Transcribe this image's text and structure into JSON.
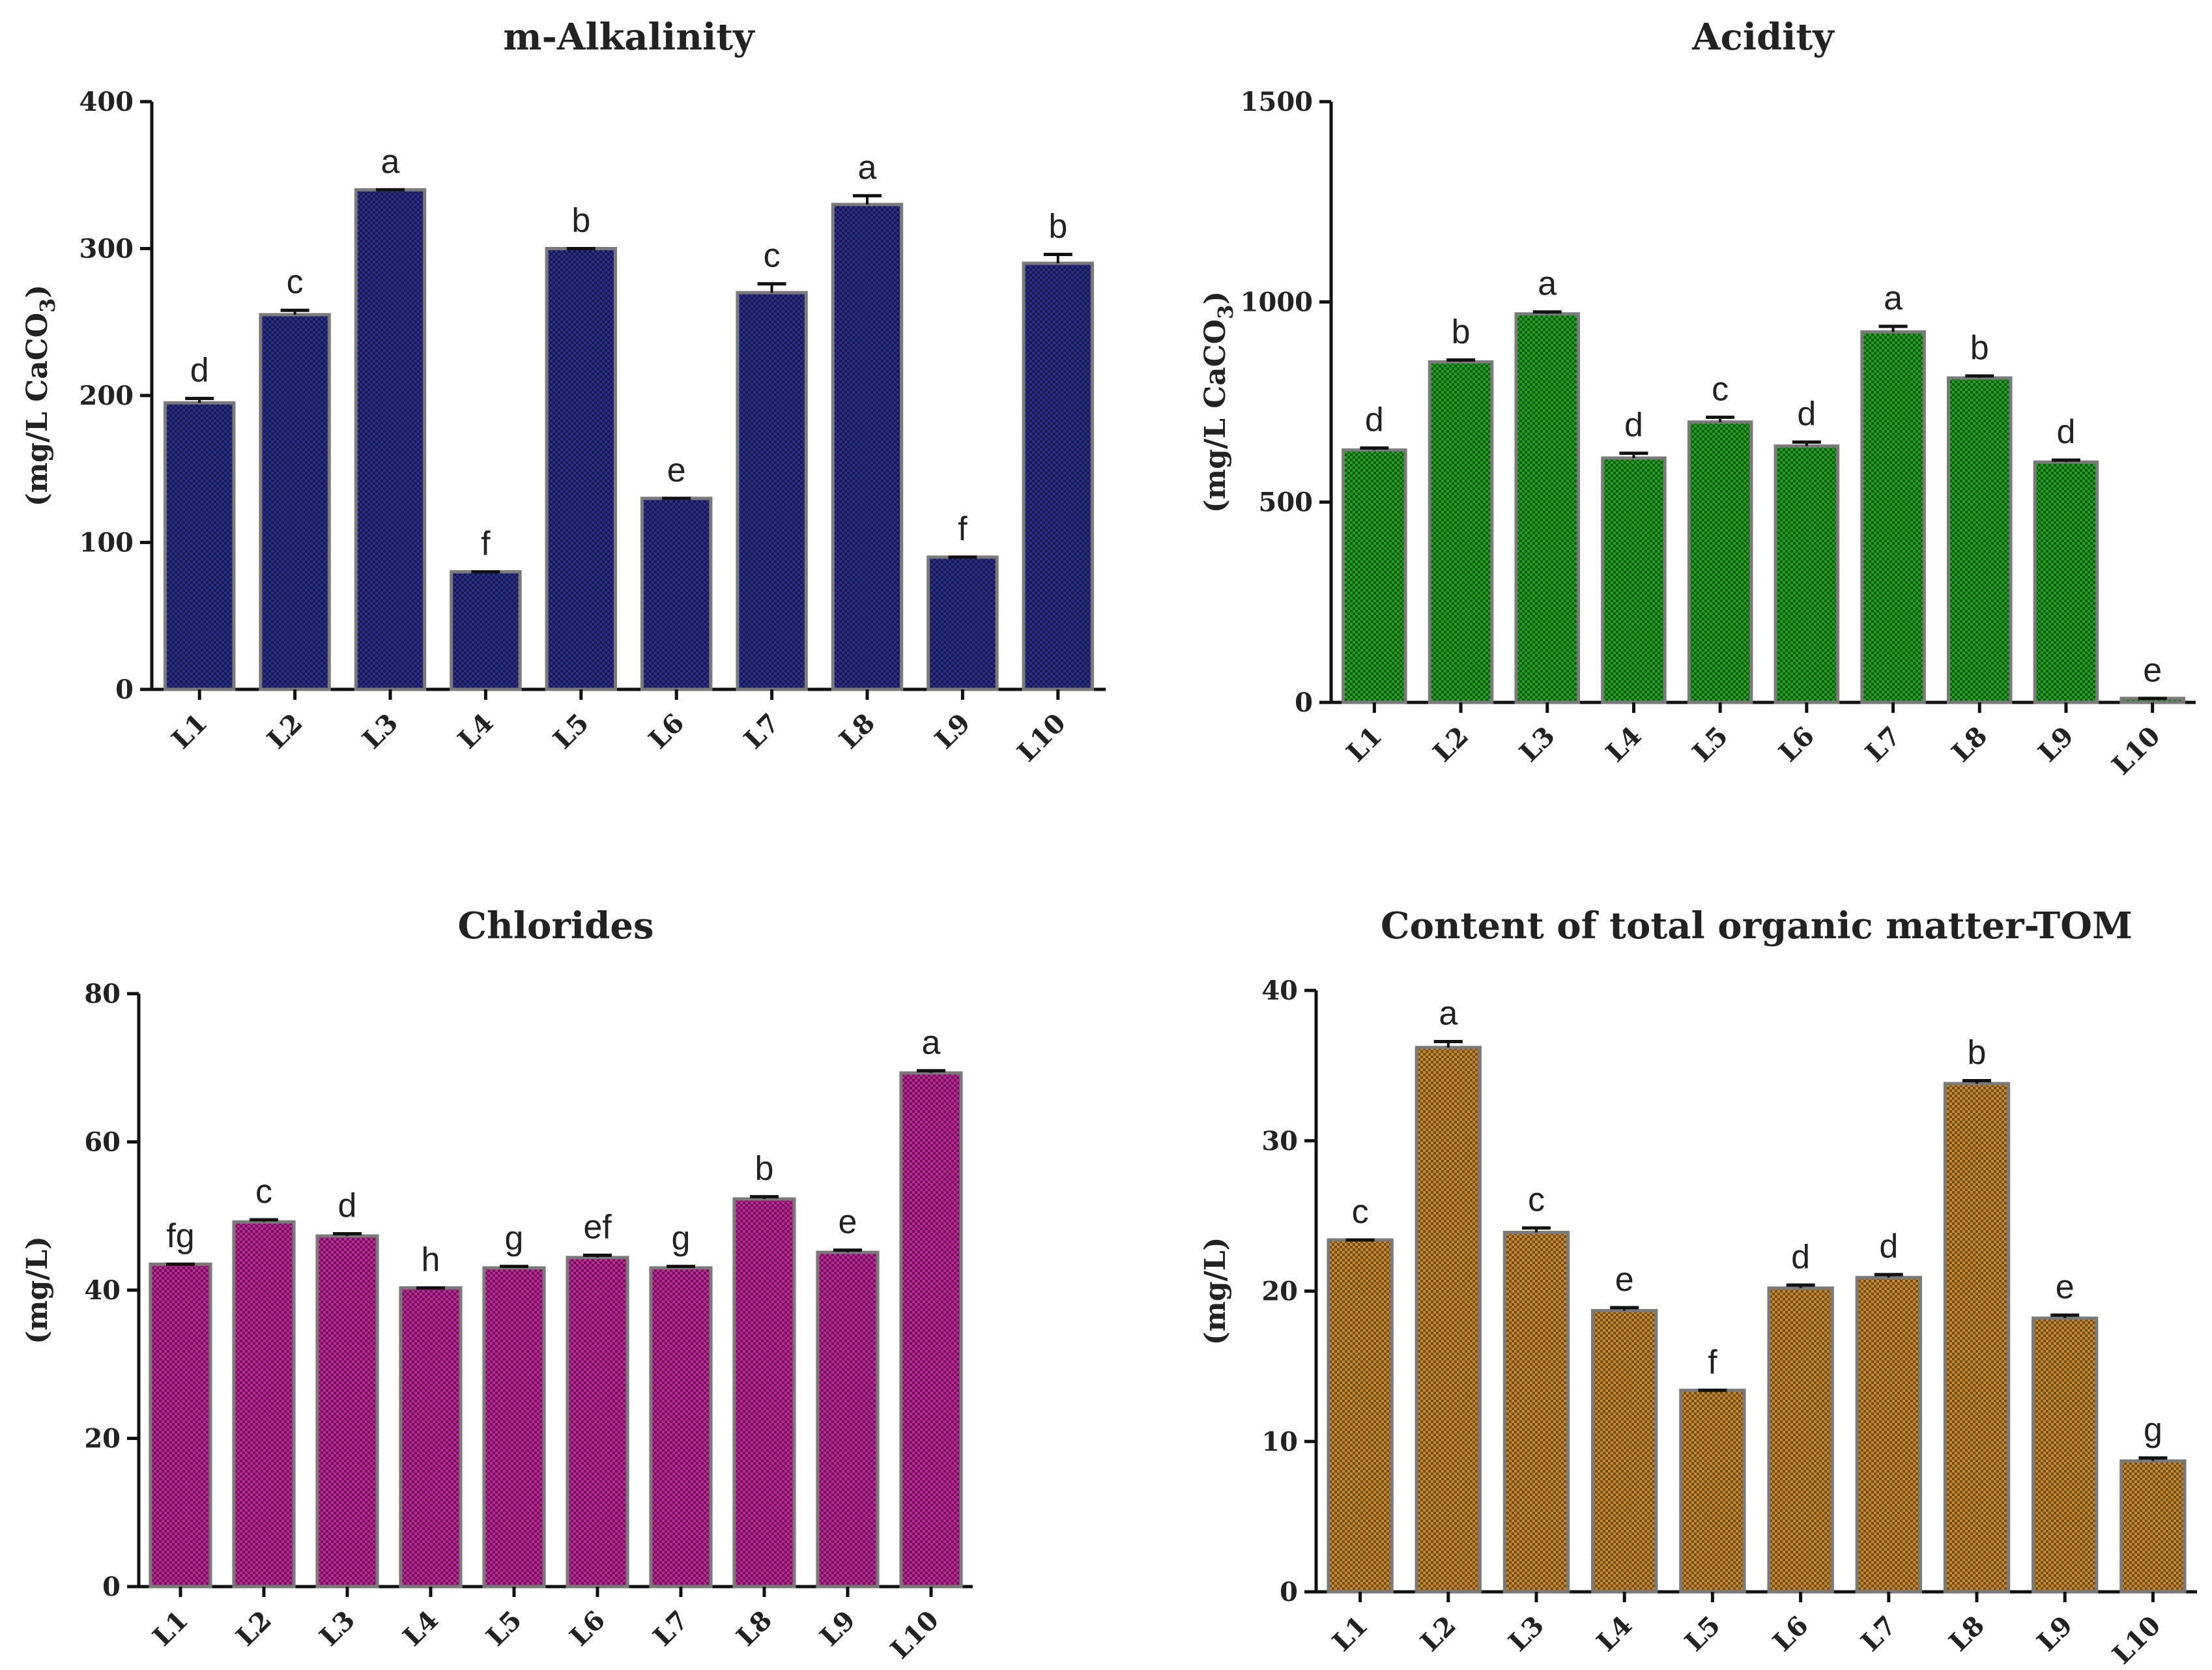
{
  "chart_data": [
    {
      "type": "bar",
      "title": "m-Alkalinity",
      "ylabel": "(mg/L CaCO3)",
      "ylabel_main": "(mg/L CaCO",
      "ylabel_sub": "3",
      "ylabel_tail": ")",
      "xlabel": "",
      "ylim": [
        0,
        400
      ],
      "yticks": [
        "0",
        "100",
        "200",
        "300",
        "400"
      ],
      "categories": [
        "L1",
        "L2",
        "L3",
        "L4",
        "L5",
        "L6",
        "L7",
        "L8",
        "L9",
        "L10"
      ],
      "values": [
        195,
        255,
        340,
        80,
        300,
        130,
        270,
        330,
        90,
        290
      ],
      "errors": [
        3,
        3,
        0,
        0,
        0,
        0,
        6,
        6,
        0,
        6
      ],
      "labels": [
        "d",
        "c",
        "a",
        "f",
        "b",
        "e",
        "c",
        "a",
        "f",
        "b"
      ],
      "color": "#2b2f8c"
    },
    {
      "type": "bar",
      "title": "Acidity",
      "ylabel": "(mg/L CaCO3)",
      "ylabel_main": "(mg/L CaCO",
      "ylabel_sub": "3",
      "ylabel_tail": ")",
      "xlabel": "",
      "ylim": [
        0,
        1500
      ],
      "yticks": [
        "0",
        "500",
        "1000",
        "1500"
      ],
      "categories": [
        "L1",
        "L2",
        "L3",
        "L4",
        "L5",
        "L6",
        "L7",
        "L8",
        "L9",
        "L10"
      ],
      "values": [
        630,
        850,
        970,
        610,
        700,
        640,
        925,
        810,
        600,
        10
      ],
      "errors": [
        5,
        5,
        5,
        12,
        12,
        10,
        14,
        5,
        5,
        0
      ],
      "labels": [
        "d",
        "b",
        "a",
        "d",
        "c",
        "d",
        "a",
        "b",
        "d",
        "e"
      ],
      "color": "#21a321"
    },
    {
      "type": "bar",
      "title": "Chlorides",
      "ylabel": "(mg/L)",
      "ylabel_main": "(mg/L)",
      "ylabel_sub": "",
      "ylabel_tail": "",
      "xlabel": "",
      "ylim": [
        0,
        80
      ],
      "yticks": [
        "0",
        "20",
        "40",
        "60",
        "80"
      ],
      "categories": [
        "L1",
        "L2",
        "L3",
        "L4",
        "L5",
        "L6",
        "L7",
        "L8",
        "L9",
        "L10"
      ],
      "values": [
        43.5,
        49.2,
        47.3,
        40.3,
        43.0,
        44.4,
        43.0,
        52.3,
        45.1,
        69.3
      ],
      "errors": [
        0,
        0.3,
        0.3,
        0,
        0.2,
        0.3,
        0.2,
        0.3,
        0.3,
        0.3
      ],
      "labels": [
        "fg",
        "c",
        "d",
        "h",
        "g",
        "ef",
        "g",
        "b",
        "e",
        "a"
      ],
      "color": "#c2269a"
    },
    {
      "type": "bar",
      "title": "Content of total organic matter-TOM",
      "ylabel": "(mg/L)",
      "ylabel_main": "(mg/L)",
      "ylabel_sub": "",
      "ylabel_tail": "",
      "xlabel": "",
      "ylim": [
        0,
        40
      ],
      "yticks": [
        "0",
        "10",
        "20",
        "30",
        "40"
      ],
      "categories": [
        "L1",
        "L2",
        "L3",
        "L4",
        "L5",
        "L6",
        "L7",
        "L8",
        "L9",
        "L10"
      ],
      "values": [
        23.4,
        36.2,
        23.9,
        18.7,
        13.4,
        20.2,
        20.9,
        33.8,
        18.2,
        8.7
      ],
      "errors": [
        0,
        0.4,
        0.3,
        0.2,
        0,
        0.2,
        0.2,
        0.2,
        0.2,
        0.2
      ],
      "labels": [
        "c",
        "a",
        "c",
        "e",
        "f",
        "d",
        "d",
        "b",
        "e",
        "g"
      ],
      "color": "#c98a2e"
    }
  ]
}
